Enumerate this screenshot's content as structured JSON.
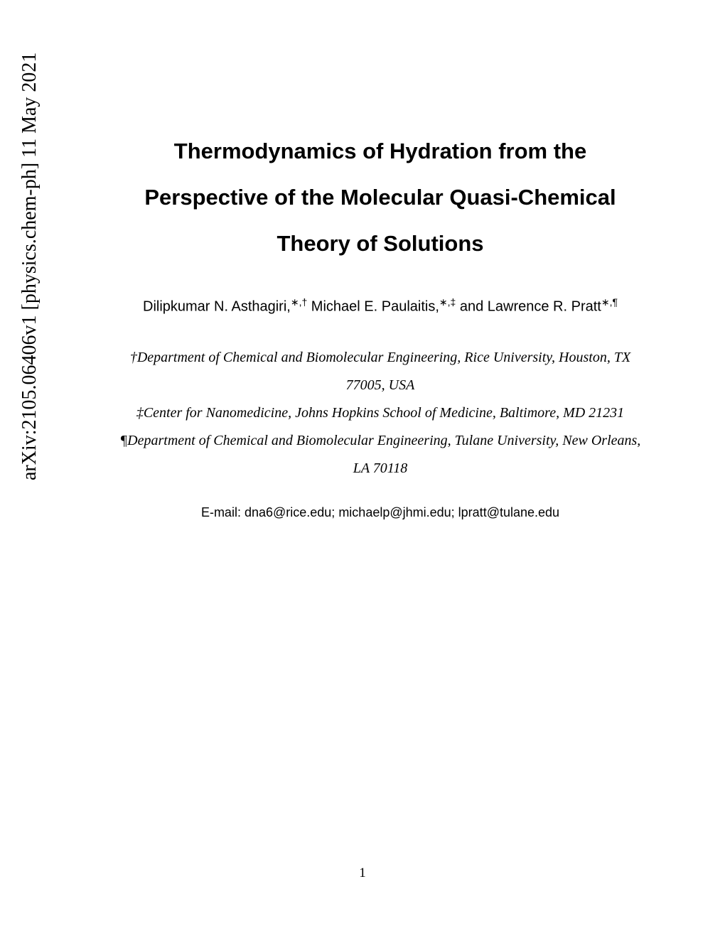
{
  "arxiv": {
    "id": "arXiv:2105.06406v1  [physics.chem-ph]  11 May 2021"
  },
  "title": {
    "line1": "Thermodynamics of Hydration from the",
    "line2": "Perspective of the Molecular Quasi-Chemical",
    "line3": "Theory of Solutions"
  },
  "authors": {
    "a1_name": "Dilipkumar N. Asthagiri,",
    "a1_sup": "∗,†",
    "a2_name": " Michael E. Paulaitis,",
    "a2_sup": "∗,‡",
    "a3_name": " and Lawrence R. Pratt",
    "a3_sup": "∗,¶"
  },
  "affiliations": {
    "aff1_marker": "†",
    "aff1_text_a": "Department of Chemical and Biomolecular Engineering, Rice University, Houston, TX",
    "aff1_text_b": "77005, USA",
    "aff2_marker": "‡",
    "aff2_text": "Center for Nanomedicine, Johns Hopkins School of Medicine, Baltimore, MD 21231",
    "aff3_marker": "¶",
    "aff3_text_a": "Department of Chemical and Biomolecular Engineering, Tulane University, New Orleans,",
    "aff3_text_b": "LA 70118"
  },
  "emails": {
    "label": "E-mail: ",
    "e1": "dna6@rice.edu; ",
    "e2": "michaelp@jhmi.edu; ",
    "e3": "lpratt@tulane.edu"
  },
  "page_number": "1",
  "colors": {
    "background": "#ffffff",
    "text": "#000000"
  },
  "typography": {
    "title_fontsize": 31,
    "authors_fontsize": 20,
    "affiliations_fontsize": 20,
    "emails_fontsize": 18,
    "arxiv_fontsize": 28
  }
}
